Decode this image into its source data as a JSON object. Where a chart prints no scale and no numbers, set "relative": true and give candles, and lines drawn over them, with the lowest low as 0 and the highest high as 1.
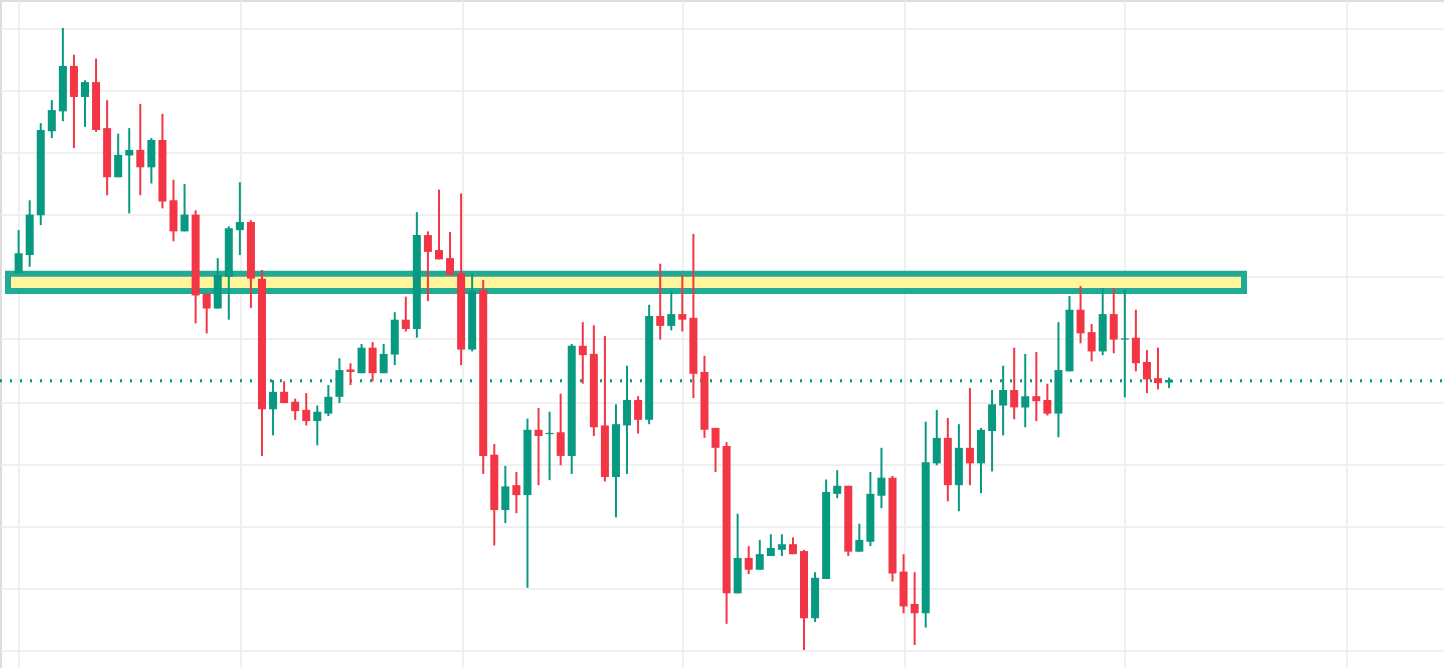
{
  "chart_data": {
    "type": "candlestick",
    "relative": true,
    "grid": true,
    "categories": [
      null,
      null,
      null,
      null,
      null,
      null,
      null,
      null,
      null,
      null,
      null,
      null,
      null,
      null,
      null,
      null,
      null,
      null,
      null,
      null,
      null,
      null,
      null,
      null,
      null,
      null,
      null,
      null,
      null,
      null,
      null,
      null,
      null,
      null,
      null,
      null,
      null,
      null,
      null,
      null,
      null,
      null,
      null,
      null,
      null,
      null,
      null,
      null,
      null,
      null,
      null,
      null,
      null,
      null,
      null,
      null,
      null,
      null,
      null,
      null,
      null,
      null,
      null,
      null,
      null,
      null,
      null,
      null,
      null,
      null,
      null,
      null,
      null,
      null,
      null,
      null,
      null,
      null,
      null,
      null,
      null,
      null,
      null,
      null,
      null,
      null,
      null,
      null,
      null,
      null,
      null,
      null,
      null,
      null,
      null,
      null,
      null,
      null,
      null,
      null,
      null,
      null,
      null,
      null,
      null
    ],
    "ohlc": [
      [
        0.606,
        0.675,
        0.606,
        0.638
      ],
      [
        0.635,
        0.723,
        0.616,
        0.7
      ],
      [
        0.699,
        0.847,
        0.683,
        0.836
      ],
      [
        0.834,
        0.884,
        0.823,
        0.868
      ],
      [
        0.866,
        1.0,
        0.85,
        0.939
      ],
      [
        0.939,
        0.957,
        0.807,
        0.889
      ],
      [
        0.889,
        0.916,
        0.841,
        0.913
      ],
      [
        0.913,
        0.951,
        0.833,
        0.836
      ],
      [
        0.839,
        0.884,
        0.731,
        0.76
      ],
      [
        0.76,
        0.83,
        0.76,
        0.796
      ],
      [
        0.795,
        0.839,
        0.702,
        0.804
      ],
      [
        0.804,
        0.878,
        0.731,
        0.776
      ],
      [
        0.776,
        0.823,
        0.75,
        0.82
      ],
      [
        0.82,
        0.862,
        0.71,
        0.721
      ],
      [
        0.723,
        0.756,
        0.657,
        0.673
      ],
      [
        0.673,
        0.749,
        0.673,
        0.7
      ],
      [
        0.7,
        0.707,
        0.525,
        0.57
      ],
      [
        0.573,
        0.573,
        0.509,
        0.549
      ],
      [
        0.549,
        0.63,
        0.549,
        0.603
      ],
      [
        0.6,
        0.681,
        0.531,
        0.678
      ],
      [
        0.675,
        0.752,
        0.635,
        0.688
      ],
      [
        0.688,
        0.691,
        0.55,
        0.597
      ],
      [
        0.597,
        0.611,
        0.312,
        0.387
      ],
      [
        0.387,
        0.434,
        0.345,
        0.415
      ],
      [
        0.415,
        0.432,
        0.397,
        0.397
      ],
      [
        0.399,
        0.404,
        0.37,
        0.384
      ],
      [
        0.386,
        0.413,
        0.361,
        0.368
      ],
      [
        0.368,
        0.393,
        0.329,
        0.383
      ],
      [
        0.38,
        0.426,
        0.376,
        0.407
      ],
      [
        0.407,
        0.469,
        0.397,
        0.45
      ],
      [
        0.451,
        0.461,
        0.426,
        0.447
      ],
      [
        0.445,
        0.492,
        0.445,
        0.486
      ],
      [
        0.486,
        0.495,
        0.432,
        0.445
      ],
      [
        0.445,
        0.492,
        0.445,
        0.476
      ],
      [
        0.475,
        0.543,
        0.458,
        0.531
      ],
      [
        0.531,
        0.568,
        0.512,
        0.516
      ],
      [
        0.516,
        0.704,
        0.502,
        0.667
      ],
      [
        0.667,
        0.673,
        0.561,
        0.64
      ],
      [
        0.643,
        0.74,
        0.628,
        0.628
      ],
      [
        0.63,
        0.672,
        0.603,
        0.603
      ],
      [
        0.606,
        0.734,
        0.458,
        0.483
      ],
      [
        0.483,
        0.606,
        0.48,
        0.577
      ],
      [
        0.579,
        0.595,
        0.283,
        0.312
      ],
      [
        0.314,
        0.331,
        0.168,
        0.225
      ],
      [
        0.225,
        0.296,
        0.204,
        0.263
      ],
      [
        0.265,
        0.286,
        0.22,
        0.249
      ],
      [
        0.249,
        0.372,
        0.1,
        0.354
      ],
      [
        0.354,
        0.389,
        0.265,
        0.344
      ],
      [
        0.347,
        0.383,
        0.273,
        0.349
      ],
      [
        0.35,
        0.412,
        0.297,
        0.312
      ],
      [
        0.312,
        0.492,
        0.283,
        0.489
      ],
      [
        0.489,
        0.527,
        0.428,
        0.474
      ],
      [
        0.476,
        0.522,
        0.344,
        0.358
      ],
      [
        0.361,
        0.505,
        0.271,
        0.278
      ],
      [
        0.278,
        0.395,
        0.213,
        0.363
      ],
      [
        0.361,
        0.457,
        0.283,
        0.402
      ],
      [
        0.402,
        0.408,
        0.348,
        0.37
      ],
      [
        0.37,
        0.555,
        0.363,
        0.537
      ],
      [
        0.537,
        0.621,
        0.499,
        0.521
      ],
      [
        0.521,
        0.577,
        0.514,
        0.54
      ],
      [
        0.54,
        0.602,
        0.512,
        0.531
      ],
      [
        0.534,
        0.669,
        0.405,
        0.444
      ],
      [
        0.447,
        0.473,
        0.341,
        0.354
      ],
      [
        0.357,
        0.357,
        0.286,
        0.325
      ],
      [
        0.328,
        0.334,
        0.042,
        0.091
      ],
      [
        0.091,
        0.219,
        0.091,
        0.148
      ],
      [
        0.148,
        0.167,
        0.122,
        0.129
      ],
      [
        0.129,
        0.177,
        0.129,
        0.154
      ],
      [
        0.151,
        0.186,
        0.151,
        0.164
      ],
      [
        0.161,
        0.186,
        0.151,
        0.17
      ],
      [
        0.17,
        0.181,
        0.154,
        0.154
      ],
      [
        0.159,
        0.161,
        0.0,
        0.051
      ],
      [
        0.051,
        0.125,
        0.045,
        0.116
      ],
      [
        0.114,
        0.274,
        0.114,
        0.254
      ],
      [
        0.251,
        0.289,
        0.244,
        0.264
      ],
      [
        0.264,
        0.264,
        0.151,
        0.158
      ],
      [
        0.158,
        0.203,
        0.158,
        0.177
      ],
      [
        0.174,
        0.286,
        0.167,
        0.251
      ],
      [
        0.248,
        0.325,
        0.228,
        0.277
      ],
      [
        0.277,
        0.28,
        0.11,
        0.123
      ],
      [
        0.126,
        0.154,
        0.059,
        0.07
      ],
      [
        0.074,
        0.125,
        0.008,
        0.059
      ],
      [
        0.059,
        0.367,
        0.036,
        0.302
      ],
      [
        0.3,
        0.386,
        0.297,
        0.341
      ],
      [
        0.341,
        0.373,
        0.239,
        0.265
      ],
      [
        0.265,
        0.363,
        0.223,
        0.325
      ],
      [
        0.325,
        0.421,
        0.265,
        0.3
      ],
      [
        0.3,
        0.357,
        0.252,
        0.354
      ],
      [
        0.352,
        0.418,
        0.287,
        0.395
      ],
      [
        0.393,
        0.457,
        0.345,
        0.418
      ],
      [
        0.418,
        0.486,
        0.371,
        0.39
      ],
      [
        0.39,
        0.476,
        0.358,
        0.408
      ],
      [
        0.408,
        0.479,
        0.368,
        0.4
      ],
      [
        0.402,
        0.428,
        0.377,
        0.38
      ],
      [
        0.38,
        0.527,
        0.342,
        0.45
      ],
      [
        0.448,
        0.569,
        0.448,
        0.547
      ],
      [
        0.547,
        0.585,
        0.493,
        0.509
      ],
      [
        0.511,
        0.524,
        0.464,
        0.48
      ],
      [
        0.48,
        0.582,
        0.474,
        0.54
      ],
      [
        0.54,
        0.582,
        0.477,
        0.499
      ],
      [
        0.499,
        0.579,
        0.406,
        0.501
      ],
      [
        0.502,
        0.547,
        0.448,
        0.461
      ],
      [
        0.463,
        0.482,
        0.413,
        0.435
      ],
      [
        0.437,
        0.486,
        0.419,
        0.429
      ],
      [
        0.43,
        0.438,
        0.421,
        0.434
      ]
    ],
    "colors": [
      "#089981",
      "#089981",
      "#089981",
      "#089981",
      "#089981",
      "#f23645",
      "#089981",
      "#f23645",
      "#f23645",
      "#089981",
      "#089981",
      "#f23645",
      "#089981",
      "#f23645",
      "#f23645",
      "#089981",
      "#f23645",
      "#f23645",
      "#089981",
      "#089981",
      "#089981",
      "#f23645",
      "#f23645",
      "#089981",
      "#f23645",
      "#f23645",
      "#f23645",
      "#089981",
      "#089981",
      "#089981",
      "#f23645",
      "#089981",
      "#f23645",
      "#089981",
      "#089981",
      "#f23645",
      "#089981",
      "#f23645",
      "#f23645",
      "#f23645",
      "#f23645",
      "#089981",
      "#f23645",
      "#f23645",
      "#089981",
      "#f23645",
      "#089981",
      "#f23645",
      "#089981",
      "#f23645",
      "#089981",
      "#f23645",
      "#f23645",
      "#f23645",
      "#089981",
      "#089981",
      "#f23645",
      "#089981",
      "#f23645",
      "#089981",
      "#f23645",
      "#f23645",
      "#f23645",
      "#f23645",
      "#f23645",
      "#089981",
      "#f23645",
      "#089981",
      "#089981",
      "#089981",
      "#f23645",
      "#f23645",
      "#089981",
      "#089981",
      "#089981",
      "#f23645",
      "#089981",
      "#089981",
      "#089981",
      "#f23645",
      "#f23645",
      "#f23645",
      "#089981",
      "#089981",
      "#f23645",
      "#089981",
      "#f23645",
      "#089981",
      "#089981",
      "#089981",
      "#f23645",
      "#089981",
      "#f23645",
      "#f23645",
      "#089981",
      "#089981",
      "#f23645",
      "#f23645",
      "#089981",
      "#f23645",
      "#089981",
      "#f23645",
      "#f23645",
      "#f23645",
      "#089981"
    ],
    "bands": [
      {
        "axis": "y",
        "from": 0.577,
        "to": 0.605,
        "color": "#fff59d"
      }
    ],
    "ref_lines": [
      {
        "axis": "y",
        "value": 0.433,
        "line_style": "dotted",
        "color": "#089981"
      }
    ]
  }
}
